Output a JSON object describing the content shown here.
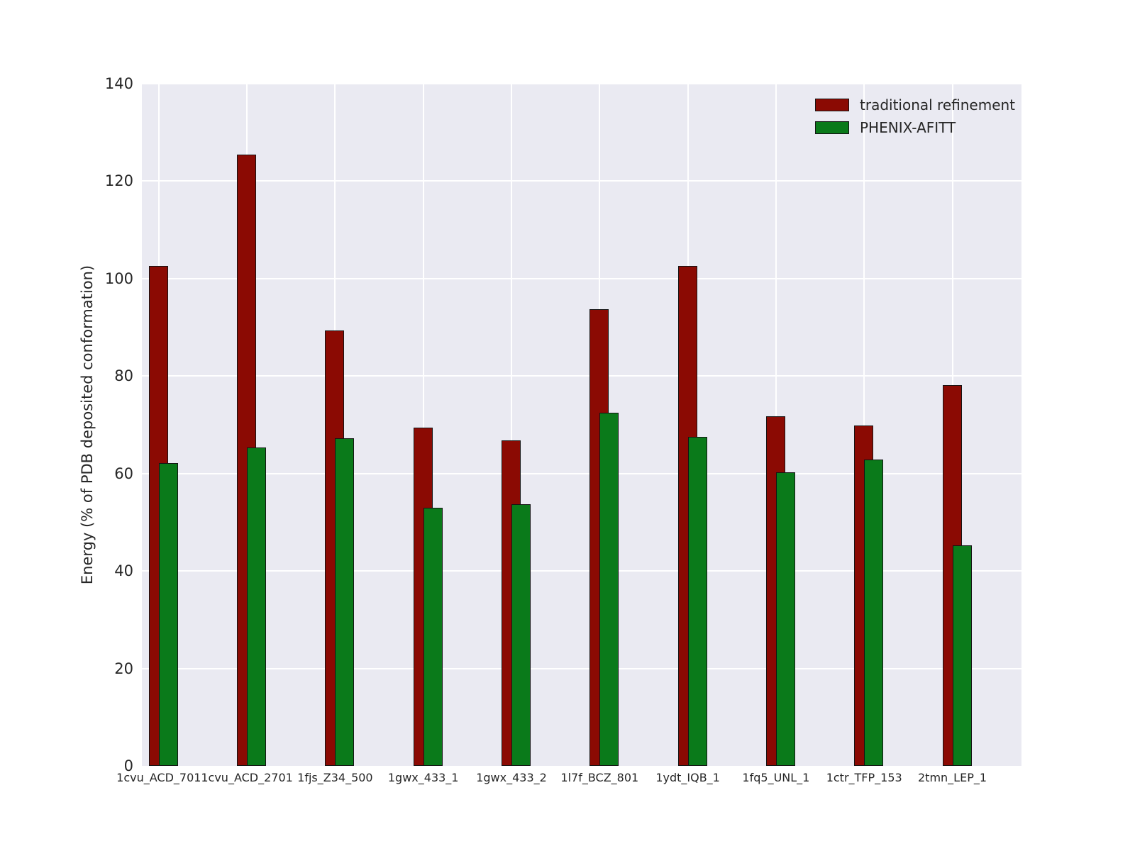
{
  "figure": {
    "background": "#ffffff",
    "plot_background": "#eaeaf2",
    "grid_color": "#ffffff",
    "text_color": "#262626"
  },
  "chart_data": {
    "type": "bar",
    "title": "",
    "xlabel": "",
    "ylabel": "Energy (% of PDB deposited conformation)",
    "ylim": [
      0,
      140
    ],
    "yticks": [
      0,
      20,
      40,
      60,
      80,
      100,
      120,
      140
    ],
    "grid": true,
    "legend_position": "upper right",
    "categories": [
      "1cvu_ACD_701",
      "1cvu_ACD_2701",
      "1fjs_Z34_500",
      "1gwx_433_1",
      "1gwx_433_2",
      "1l7f_BCZ_801",
      "1ydt_IQB_1",
      "1fq5_UNL_1",
      "1ctr_TFP_153",
      "2tmn_LEP_1"
    ],
    "series": [
      {
        "name": "traditional refinement",
        "color": "#8b0a03",
        "values": [
          102.6,
          125.4,
          89.4,
          69.4,
          66.8,
          93.7,
          102.6,
          71.7,
          69.9,
          78.2
        ]
      },
      {
        "name": "PHENIX-AFITT",
        "color": "#0a7a1a",
        "values": [
          62.2,
          65.4,
          67.2,
          53.0,
          53.7,
          72.5,
          67.5,
          60.2,
          62.9,
          45.2
        ]
      }
    ]
  },
  "legend": {
    "entries": [
      {
        "label": "traditional refinement",
        "color": "#8b0a03"
      },
      {
        "label": "PHENIX-AFITT",
        "color": "#0a7a1a"
      }
    ]
  }
}
